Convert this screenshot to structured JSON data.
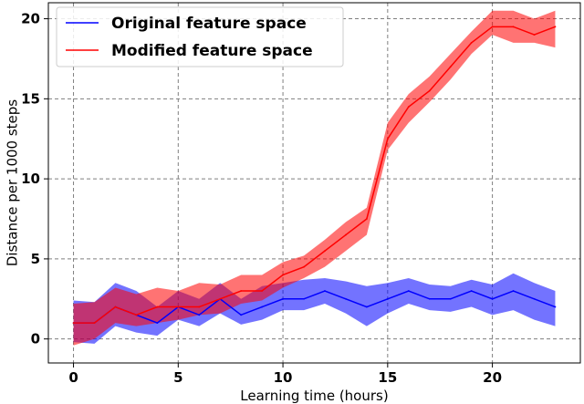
{
  "chart_data": {
    "type": "line",
    "title": "",
    "xlabel": "Learning time (hours)",
    "ylabel": "Distance per 1000 steps",
    "xlim": [
      -1.2,
      24.2
    ],
    "ylim": [
      -1.5,
      21
    ],
    "xticks": [
      0,
      5,
      10,
      15,
      20
    ],
    "yticks": [
      0,
      5,
      10,
      15,
      20
    ],
    "grid": true,
    "legend": "top-left",
    "x": [
      0,
      1,
      2,
      3,
      4,
      5,
      6,
      7,
      8,
      9,
      10,
      11,
      12,
      13,
      14,
      15,
      16,
      17,
      18,
      19,
      20,
      21,
      22,
      23
    ],
    "series": [
      {
        "name": "Original feature space",
        "color": "#0000ff",
        "values": [
          1.0,
          1.0,
          2.0,
          1.5,
          1.0,
          2.0,
          1.5,
          2.5,
          1.5,
          2.0,
          2.5,
          2.5,
          3.0,
          2.5,
          2.0,
          2.5,
          3.0,
          2.5,
          2.5,
          3.0,
          2.5,
          3.0,
          2.5,
          2.0
        ],
        "lower": [
          -0.2,
          -0.3,
          0.8,
          0.4,
          0.2,
          1.2,
          0.8,
          1.6,
          0.9,
          1.2,
          1.8,
          1.8,
          2.2,
          1.6,
          0.8,
          1.6,
          2.2,
          1.8,
          1.7,
          2.0,
          1.5,
          1.8,
          1.2,
          0.8
        ],
        "upper": [
          2.4,
          2.3,
          3.5,
          3.0,
          2.0,
          3.0,
          2.5,
          3.5,
          2.5,
          3.3,
          3.5,
          3.7,
          3.8,
          3.6,
          3.3,
          3.5,
          3.8,
          3.4,
          3.3,
          3.7,
          3.4,
          4.1,
          3.5,
          3.0
        ]
      },
      {
        "name": "Modified feature space",
        "color": "#ff0000",
        "values": [
          1.0,
          1.0,
          2.0,
          1.5,
          2.0,
          2.0,
          2.0,
          2.5,
          3.0,
          3.0,
          4.0,
          4.5,
          5.5,
          6.5,
          7.5,
          12.5,
          14.5,
          15.5,
          17.0,
          18.5,
          19.5,
          19.5,
          19.0,
          19.5
        ],
        "lower": [
          -0.4,
          0.0,
          1.0,
          0.8,
          1.0,
          1.2,
          1.5,
          1.6,
          2.2,
          2.4,
          3.2,
          3.8,
          4.5,
          5.5,
          6.5,
          11.8,
          13.5,
          14.8,
          16.2,
          17.8,
          19.0,
          18.5,
          18.5,
          18.2
        ],
        "upper": [
          2.2,
          2.3,
          3.2,
          2.8,
          3.2,
          3.0,
          3.5,
          3.4,
          4.0,
          4.0,
          4.8,
          5.2,
          6.2,
          7.3,
          8.2,
          13.5,
          15.3,
          16.4,
          17.8,
          19.2,
          20.5,
          20.5,
          20.0,
          20.5
        ]
      }
    ]
  }
}
